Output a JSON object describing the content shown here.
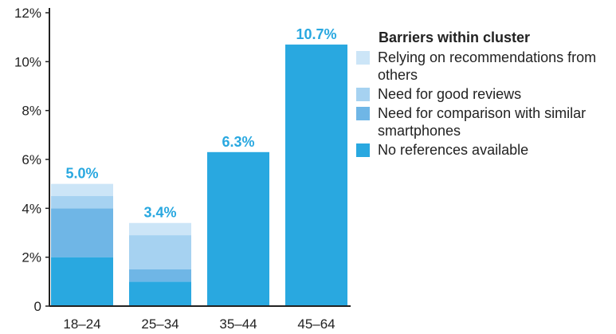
{
  "chart_data": {
    "type": "bar",
    "stacked": true,
    "categories": [
      "18–24",
      "25–34",
      "35–44",
      "45–64"
    ],
    "totals": [
      "5.0%",
      "3.4%",
      "6.3%",
      "10.7%"
    ],
    "ylim": [
      0,
      12
    ],
    "yticks": [
      0,
      2,
      4,
      6,
      8,
      10,
      12
    ],
    "ytick_labels": [
      "0",
      "2%",
      "4%",
      "6%",
      "8%",
      "10%",
      "12%"
    ],
    "legend_title": "Barriers within cluster",
    "legend_position": "right",
    "grid": false,
    "series": [
      {
        "name": "No references available",
        "color": "#29a8e0",
        "values": [
          2.0,
          1.0,
          6.3,
          10.7
        ]
      },
      {
        "name": "Need for comparison with similar smartphones",
        "color": "#6fb6e6",
        "values": [
          2.0,
          0.5,
          0,
          0
        ]
      },
      {
        "name": "Need for good reviews",
        "color": "#a6d2f1",
        "values": [
          0.5,
          1.4,
          0,
          0
        ]
      },
      {
        "name": "Relying on recommendations from others",
        "color": "#cce5f7",
        "values": [
          0.5,
          0.5,
          0,
          0
        ]
      }
    ],
    "label_color": "#29a8e0"
  }
}
